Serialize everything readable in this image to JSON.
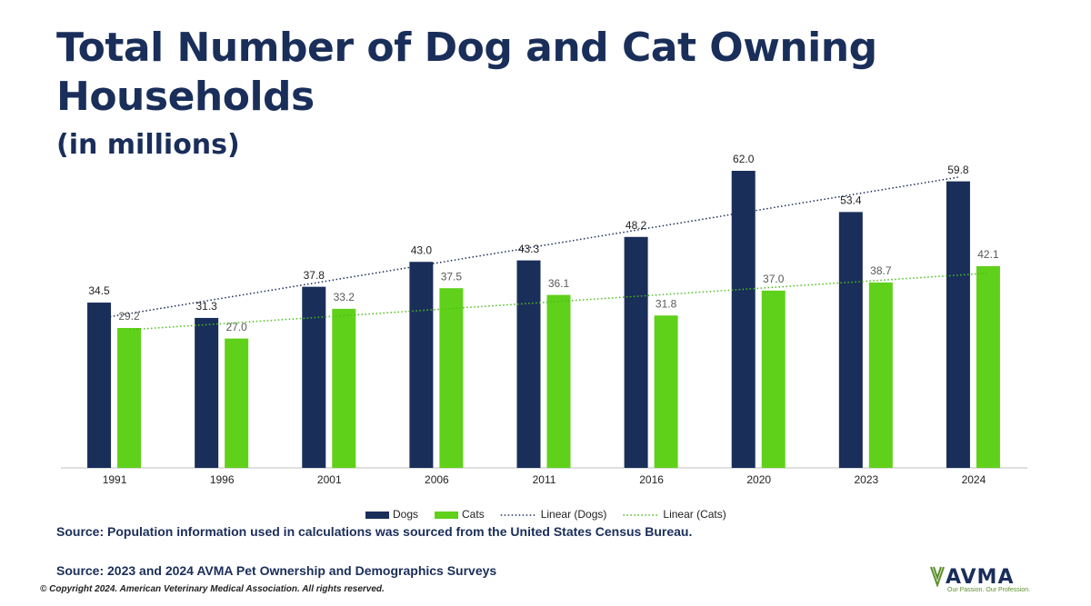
{
  "chart_data": {
    "type": "bar",
    "title": "Total Number of Dog and Cat Owning Households",
    "subtitle": "(in millions)",
    "categories": [
      "1991",
      "1996",
      "2001",
      "2006",
      "2011",
      "2016",
      "2020",
      "2023",
      "2024"
    ],
    "series": [
      {
        "name": "Dogs",
        "color": "#1a2e5a",
        "values": [
          34.5,
          31.3,
          37.8,
          43.0,
          43.3,
          48.2,
          62.0,
          53.4,
          59.8
        ],
        "value_labels": [
          "34.5",
          "31.3",
          "37.8",
          "43.0",
          "43.3",
          "48.2",
          "62.0",
          "53.4",
          "59.8"
        ],
        "trendline": {
          "name": "Linear (Dogs)",
          "color": "#1a2e5a"
        }
      },
      {
        "name": "Cats",
        "color": "#5fd11a",
        "values": [
          29.2,
          27.0,
          33.2,
          37.5,
          36.1,
          31.8,
          37.0,
          38.7,
          42.1
        ],
        "value_labels": [
          "29.2",
          "27.0",
          "33.2",
          "37.5",
          "36.1",
          "31.8",
          "37.0",
          "38.7",
          "42.1"
        ],
        "trendline": {
          "name": "Linear (Cats)",
          "color": "#4cbf1a"
        }
      }
    ],
    "legend": "bottom",
    "sources": [
      "Source: Population information used in calculations was sourced from the United States Census Bureau.",
      "Source: 2023 and 2024 AVMA Pet Ownership and Demographics Surveys"
    ],
    "copyright": "© Copyright 2024. American Veterinary Medical Association. All rights reserved."
  },
  "logo": {
    "name": "AVMA",
    "tagline": "Our Passion. Our Profession."
  }
}
